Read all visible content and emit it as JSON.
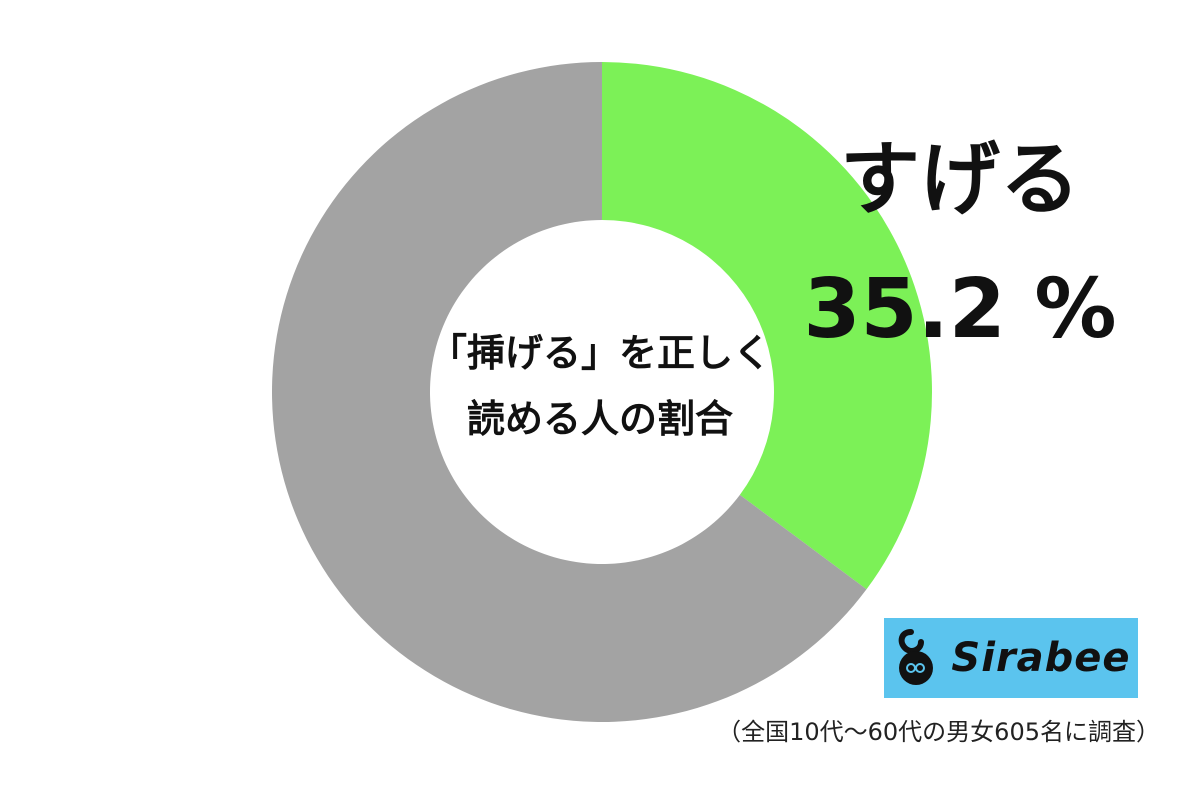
{
  "chart_data": {
    "type": "pie",
    "title": "「挿げる」を正しく\n読める人の割合",
    "title_lines": [
      "「挿げる」を正しく",
      "読める人の割合"
    ],
    "slices": [
      {
        "name": "すげる",
        "value": 35.2,
        "value_label": "35.2 %",
        "color": "#7cf157"
      },
      {
        "name": "",
        "value": 64.8,
        "color": "#a3a3a3"
      }
    ],
    "start_angle": "12 o'clock, clockwise",
    "donut": true
  },
  "logo": {
    "text": "Sirabee",
    "background": "#5bc4ee"
  },
  "footnote": "（全国10代～60代の男女605名に調査）"
}
